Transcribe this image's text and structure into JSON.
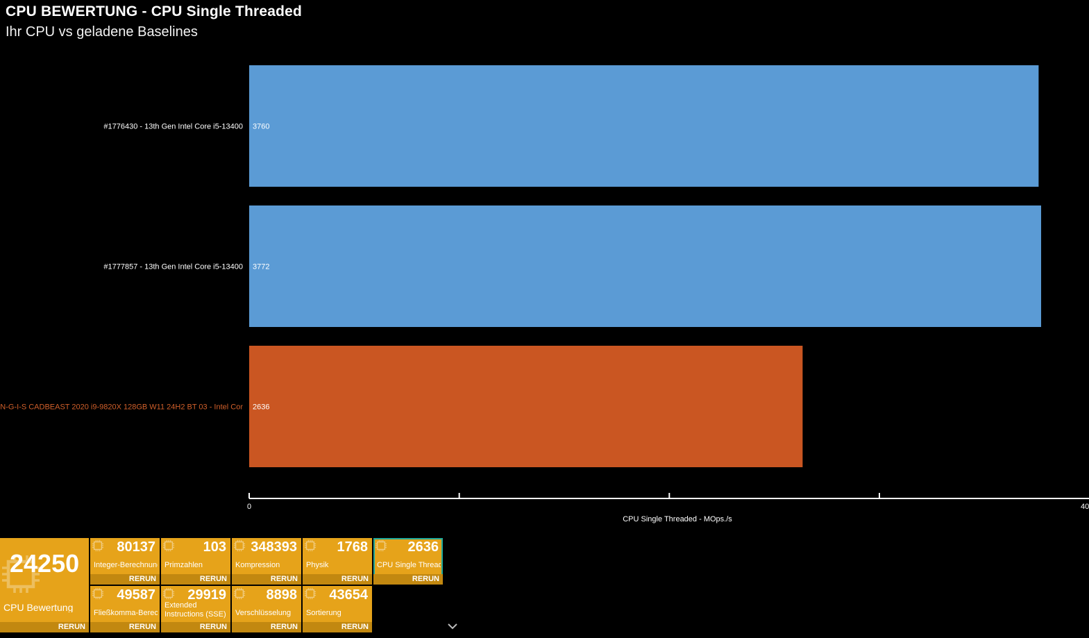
{
  "header": {
    "title": "CPU BEWERTUNG - CPU Single Threaded",
    "subtitle": "Ihr CPU vs geladene Baselines"
  },
  "colors": {
    "baseline_bar": "#5b9bd5",
    "own_bar": "#ca5622",
    "own_label": "#d05f2a",
    "tile_bg": "#e6a31a",
    "tile_rerun_bg": "#c28810",
    "active_outline": "#1fa89a"
  },
  "chart_data": {
    "type": "bar",
    "orientation": "horizontal",
    "categories": [
      "#1776430 - 13th Gen Intel Core i5-13400",
      "#1777857 - 13th Gen Intel Core i5-13400",
      "N-G-I-S CADBEAST 2020 i9-9820X 128GB W11 24H2 BT 03 - Intel Cor"
    ],
    "values": [
      3760,
      3772,
      2636
    ],
    "data_labels": [
      "3760",
      "3772",
      "2636"
    ],
    "highlight_index": 2,
    "xlabel": "CPU Single Threaded - MOps./s",
    "xlim": [
      0,
      4000
    ],
    "tick_labels": [
      "0",
      "40"
    ],
    "grid": false
  },
  "tiles": {
    "main": {
      "value": "24250",
      "label": "CPU Bewertung",
      "rerun": "RERUN",
      "icon": "cpu-chip-icon"
    },
    "row1": [
      {
        "value": "80137",
        "label": "Integer-Berechnungen",
        "rerun": "RERUN"
      },
      {
        "value": "103",
        "label": "Primzahlen",
        "rerun": "RERUN"
      },
      {
        "value": "348393",
        "label": "Kompression",
        "rerun": "RERUN"
      },
      {
        "value": "1768",
        "label": "Physik",
        "rerun": "RERUN"
      },
      {
        "value": "2636",
        "label": "CPU Single Threaded",
        "rerun": "RERUN",
        "active": true
      }
    ],
    "row2": [
      {
        "value": "49587",
        "label": "Fließkomma-Berechnungen",
        "rerun": "RERUN"
      },
      {
        "value": "29919",
        "label": "Extended Instructions (SSE)",
        "rerun": "RERUN"
      },
      {
        "value": "8898",
        "label": "Verschlüsselung",
        "rerun": "RERUN"
      },
      {
        "value": "43654",
        "label": "Sortierung",
        "rerun": "RERUN"
      }
    ],
    "chevron_icon": "chevron-down-icon"
  }
}
